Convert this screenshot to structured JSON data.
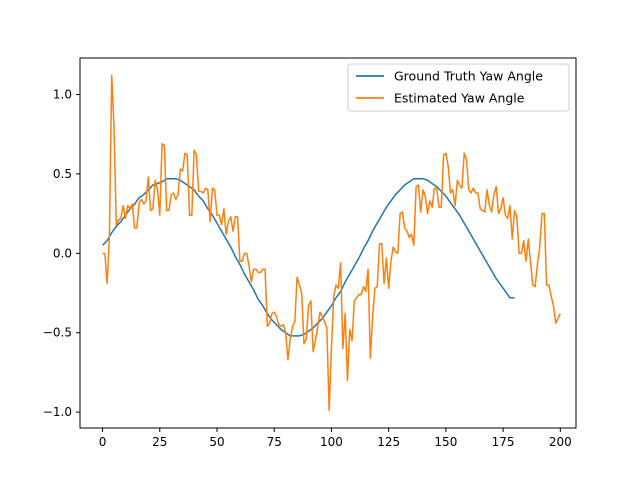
{
  "chart_data": {
    "type": "line",
    "title": "",
    "xlabel": "",
    "ylabel": "",
    "xlim": [
      -9.85,
      206.85
    ],
    "ylim": [
      -1.1,
      1.23
    ],
    "xticks": [
      0,
      25,
      50,
      75,
      100,
      125,
      150,
      175,
      200
    ],
    "xtick_labels": [
      "0",
      "25",
      "50",
      "75",
      "100",
      "125",
      "150",
      "175",
      "200"
    ],
    "yticks": [
      -1.0,
      -0.5,
      0.0,
      0.5,
      1.0
    ],
    "ytick_labels": [
      "−1.0",
      "−0.5",
      "0.0",
      "0.5",
      "1.0"
    ],
    "grid": false,
    "legend_position": "upper right",
    "series": [
      {
        "name": "Ground Truth Yaw Angle",
        "color": "#1f77b4",
        "step": 2,
        "x_start": 0,
        "values": [
          0.05,
          0.08,
          0.13,
          0.17,
          0.2,
          0.24,
          0.28,
          0.31,
          0.35,
          0.37,
          0.4,
          0.43,
          0.44,
          0.45,
          0.47,
          0.47,
          0.47,
          0.46,
          0.44,
          0.42,
          0.4,
          0.36,
          0.33,
          0.28,
          0.24,
          0.19,
          0.14,
          0.09,
          0.04,
          -0.02,
          -0.07,
          -0.13,
          -0.18,
          -0.23,
          -0.29,
          -0.33,
          -0.38,
          -0.42,
          -0.45,
          -0.48,
          -0.5,
          -0.52,
          -0.52,
          -0.52,
          -0.51,
          -0.49,
          -0.47,
          -0.44,
          -0.41,
          -0.37,
          -0.33,
          -0.28,
          -0.24,
          -0.18,
          -0.13,
          -0.08,
          -0.03,
          0.03,
          0.08,
          0.14,
          0.19,
          0.24,
          0.29,
          0.33,
          0.37,
          0.4,
          0.43,
          0.45,
          0.47,
          0.47,
          0.47,
          0.46,
          0.44,
          0.42,
          0.39,
          0.36,
          0.32,
          0.28,
          0.24,
          0.19,
          0.14,
          0.09,
          0.04,
          -0.01,
          -0.06,
          -0.11,
          -0.16,
          -0.2,
          -0.24,
          -0.28,
          -0.28
        ]
      },
      {
        "name": "Estimated Yaw Angle",
        "color": "#ff7f0e",
        "step": 1,
        "x_start": 0,
        "values": [
          0.0,
          0.0,
          -0.19,
          0.11,
          1.12,
          0.8,
          0.18,
          0.21,
          0.22,
          0.3,
          0.22,
          0.3,
          0.28,
          0.31,
          0.16,
          0.16,
          0.32,
          0.34,
          0.31,
          0.33,
          0.48,
          0.27,
          0.28,
          0.46,
          0.4,
          0.24,
          0.69,
          0.68,
          0.27,
          0.27,
          0.37,
          0.38,
          0.34,
          0.37,
          0.53,
          0.52,
          0.63,
          0.62,
          0.24,
          0.24,
          0.65,
          0.62,
          0.39,
          0.39,
          0.38,
          0.41,
          0.4,
          0.2,
          0.41,
          0.4,
          0.24,
          0.24,
          0.18,
          0.28,
          0.12,
          0.2,
          0.23,
          0.14,
          0.23,
          0.23,
          -0.05,
          -0.05,
          0.0,
          0.0,
          -0.08,
          -0.18,
          -0.1,
          -0.1,
          -0.12,
          -0.12,
          -0.1,
          -0.1,
          -0.46,
          -0.44,
          -0.38,
          -0.37,
          -0.4,
          -0.45,
          -0.46,
          -0.45,
          -0.5,
          -0.67,
          -0.54,
          -0.46,
          -0.43,
          -0.15,
          -0.2,
          -0.25,
          -0.57,
          -0.54,
          -0.33,
          -0.3,
          -0.62,
          -0.55,
          -0.46,
          -0.37,
          -0.4,
          -0.43,
          -0.47,
          -0.99,
          -0.6,
          -0.27,
          -0.2,
          -0.22,
          -0.06,
          -0.6,
          -0.38,
          -0.8,
          -0.48,
          -0.55,
          -0.3,
          -0.28,
          -0.26,
          -0.26,
          -0.21,
          -0.24,
          -0.1,
          -0.66,
          -0.4,
          -0.22,
          -0.21,
          0.06,
          0.06,
          -0.19,
          -0.03,
          -0.22,
          -0.05,
          0.04,
          0.01,
          0.0,
          0.25,
          0.26,
          0.16,
          0.14,
          0.1,
          0.12,
          0.05,
          0.42,
          0.43,
          0.26,
          0.4,
          0.36,
          0.25,
          0.33,
          0.29,
          0.41,
          0.41,
          0.29,
          0.29,
          0.62,
          0.63,
          0.55,
          0.38,
          0.4,
          0.3,
          0.46,
          0.43,
          0.41,
          0.63,
          0.59,
          0.4,
          0.38,
          0.41,
          0.38,
          0.38,
          0.28,
          0.27,
          0.26,
          0.4,
          0.3,
          0.26,
          0.37,
          0.42,
          0.25,
          0.28,
          0.35,
          0.24,
          0.22,
          0.3,
          0.09,
          0.27,
          0.23,
          0.0,
          0.0,
          0.08,
          -0.05,
          0.09,
          -0.06,
          -0.2,
          -0.21,
          -0.07,
          0.04,
          0.25,
          0.25,
          -0.2,
          -0.2,
          -0.27,
          -0.33,
          -0.44,
          -0.41,
          -0.38
        ]
      }
    ]
  }
}
